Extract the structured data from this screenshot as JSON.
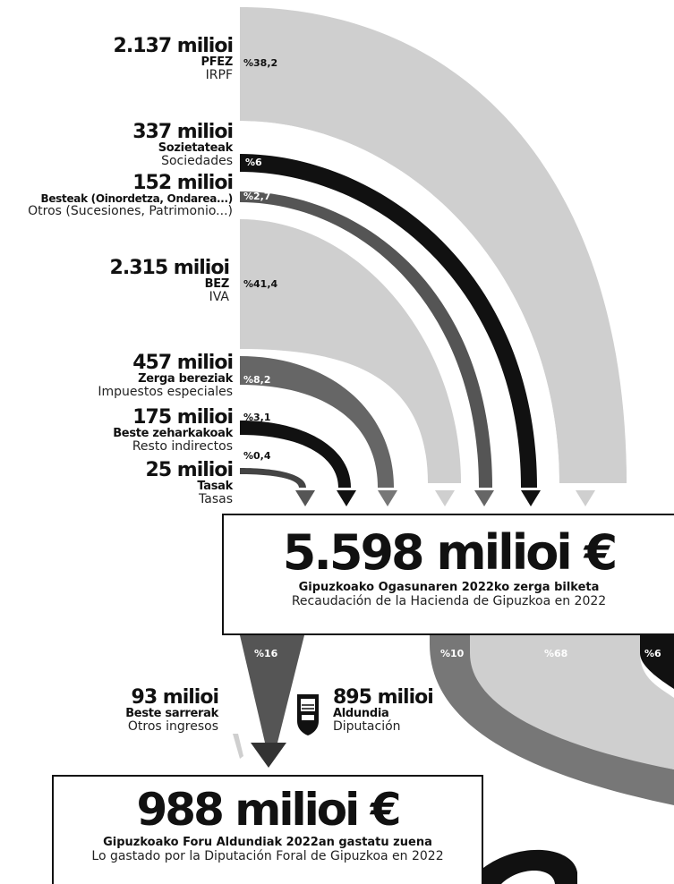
{
  "sources": [
    {
      "amount": "2.137 milioi",
      "eu": "PFEZ",
      "es": "IRPF",
      "pct": "%38,2"
    },
    {
      "amount": "337 milioi",
      "eu": "Sozietateak",
      "es": "Sociedades",
      "pct": "%6"
    },
    {
      "amount": "152 milioi",
      "eu": "Besteak (Oinordetza, Ondarea...)",
      "es": "Otros (Sucesiones, Patrimonio...)",
      "pct": "%2,7"
    },
    {
      "amount": "2.315 milioi",
      "eu": "BEZ",
      "es": "IVA",
      "pct": "%41,4"
    },
    {
      "amount": "457 milioi",
      "eu": "Zerga bereziak",
      "es": "Impuestos especiales",
      "pct": "%8,2"
    },
    {
      "amount": "175 milioi",
      "eu": "Beste zeharkakoak",
      "es": "Resto indirectos",
      "pct": "%3,1"
    },
    {
      "amount": "25 milioi",
      "eu": "Tasak",
      "es": "Tasas",
      "pct": "%0,4"
    }
  ],
  "total": {
    "amount": "5.598 milioi €",
    "eu": "Gipuzkoako Ogasunaren 2022ko zerga bilketa",
    "es": "Recaudación de la Hacienda de Gipuzkoa en 2022"
  },
  "distribution": [
    {
      "pct": "%16"
    },
    {
      "pct": "%10"
    },
    {
      "pct": "%68"
    },
    {
      "pct": "%6"
    }
  ],
  "inputs": [
    {
      "amount": "93 milioi",
      "eu": "Beste sarrerak",
      "es": "Otros ingresos"
    },
    {
      "amount": "895 milioi",
      "eu": "Aldundia",
      "es": "Diputación"
    }
  ],
  "spending": {
    "amount": "988 milioi €",
    "eu": "Gipuzkoako Foru Aldundiak 2022an gastatu zuena",
    "es": "Lo gastado por la Diputación Foral de Gipuzkoa en 2022"
  }
}
